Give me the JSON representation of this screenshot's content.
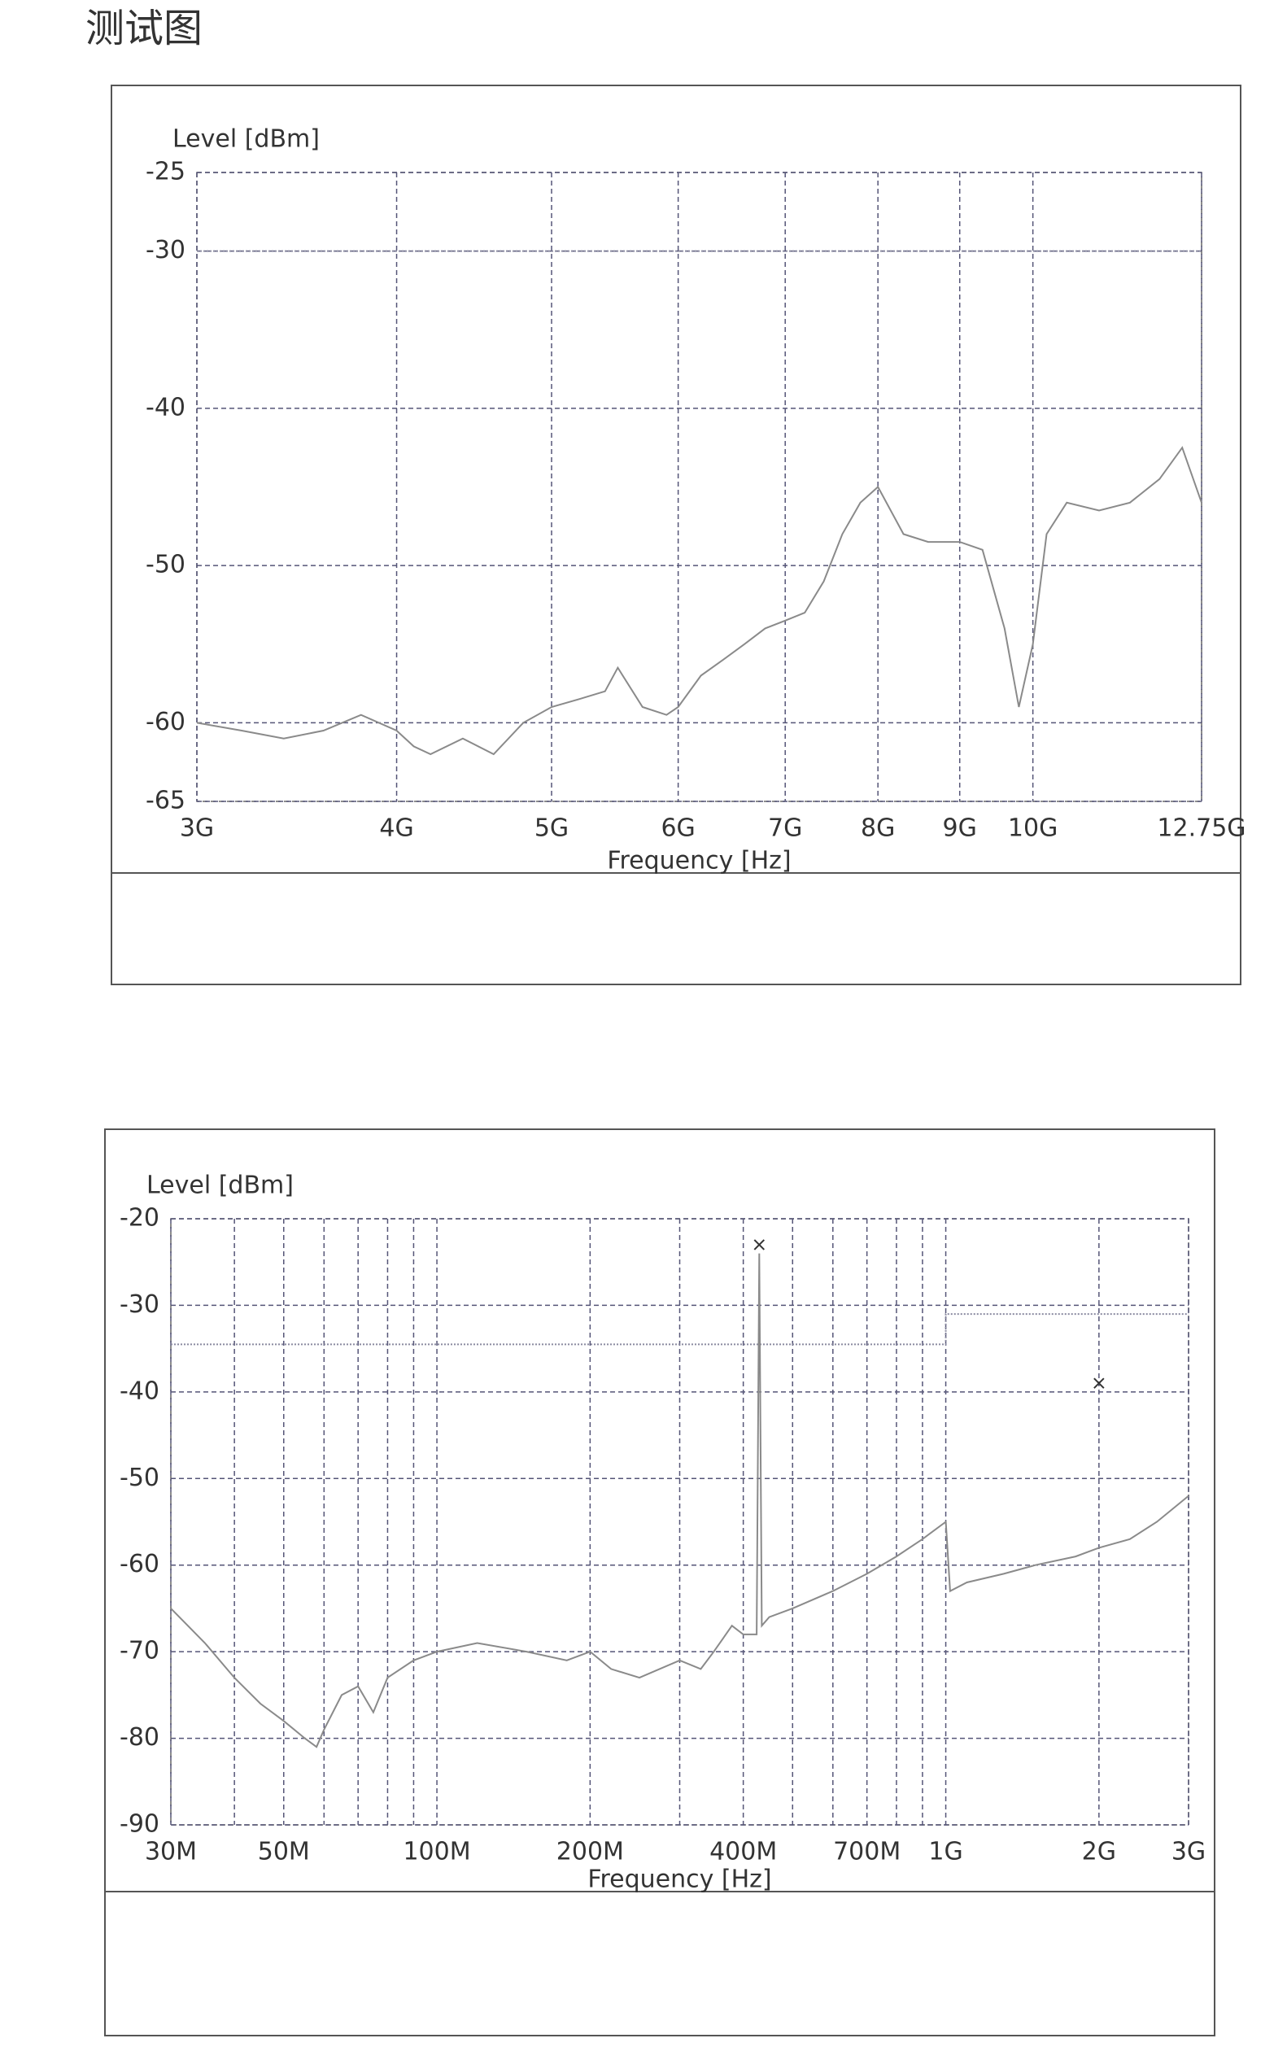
{
  "heading": "测试图",
  "chart_data": [
    {
      "type": "line",
      "ylabel": "Level [dBm]",
      "xlabel": "Frequency [Hz]",
      "xscale": "log",
      "grid": true,
      "xlim": [
        3000000000.0,
        12750000000.0
      ],
      "ylim": [
        -65,
        -25
      ],
      "xticks": [
        {
          "value": 3000000000.0,
          "label": "3G"
        },
        {
          "value": 4000000000.0,
          "label": "4G"
        },
        {
          "value": 5000000000.0,
          "label": "5G"
        },
        {
          "value": 6000000000.0,
          "label": "6G"
        },
        {
          "value": 7000000000.0,
          "label": "7G"
        },
        {
          "value": 8000000000.0,
          "label": "8G"
        },
        {
          "value": 9000000000.0,
          "label": "9G"
        },
        {
          "value": 10000000000.0,
          "label": "10G"
        },
        {
          "value": 12750000000.0,
          "label": "12.75G"
        }
      ],
      "yticks": [
        -25,
        -30,
        -40,
        -50,
        -60,
        -65
      ],
      "x": [
        3000000000.0,
        3200000000.0,
        3400000000.0,
        3600000000.0,
        3800000000.0,
        4000000000.0,
        4100000000.0,
        4200000000.0,
        4400000000.0,
        4600000000.0,
        4800000000.0,
        5000000000.0,
        5200000000.0,
        5400000000.0,
        5500000000.0,
        5700000000.0,
        5900000000.0,
        6000000000.0,
        6200000000.0,
        6400000000.0,
        6600000000.0,
        6800000000.0,
        7000000000.0,
        7200000000.0,
        7400000000.0,
        7600000000.0,
        7800000000.0,
        8000000000.0,
        8300000000.0,
        8600000000.0,
        9000000000.0,
        9300000000.0,
        9600000000.0,
        9800000000.0,
        10000000000.0,
        10200000000.0,
        10500000000.0,
        11000000000.0,
        11500000000.0,
        12000000000.0,
        12400000000.0,
        12750000000.0
      ],
      "series": [
        {
          "color": "#8a8a8a",
          "values": [
            -60,
            -60.5,
            -61,
            -60.5,
            -59.5,
            -60.5,
            -61.5,
            -62,
            -61,
            -62,
            -60,
            -59,
            -58.5,
            -58,
            -56.5,
            -59,
            -59.5,
            -59,
            -57,
            -56,
            -55,
            -54,
            -53.5,
            -53,
            -51,
            -48,
            -46,
            -45,
            -48,
            -48.5,
            -48.5,
            -49,
            -54,
            -59,
            -55,
            -48,
            -46,
            -46.5,
            -46,
            -44.5,
            -42.5,
            -46
          ]
        }
      ],
      "limit": {
        "color": "#8a8aa0",
        "x": [
          3000000000.0,
          12750000000.0
        ],
        "y": [
          -30,
          -30
        ]
      }
    },
    {
      "type": "line",
      "ylabel": "Level [dBm]",
      "xlabel": "Frequency [Hz]",
      "xscale": "log",
      "grid": true,
      "xlim": [
        30000000.0,
        3000000000.0
      ],
      "ylim": [
        -90,
        -20
      ],
      "xticks": [
        {
          "value": 30000000.0,
          "label": "30M"
        },
        {
          "value": 50000000.0,
          "label": "50M"
        },
        {
          "value": 100000000.0,
          "label": "100M"
        },
        {
          "value": 200000000.0,
          "label": "200M"
        },
        {
          "value": 400000000.0,
          "label": "400M"
        },
        {
          "value": 700000000.0,
          "label": "700M"
        },
        {
          "value": 1000000000.0,
          "label": "1G"
        },
        {
          "value": 2000000000.0,
          "label": "2G"
        },
        {
          "value": 3000000000.0,
          "label": "3G"
        }
      ],
      "xminorticks": [
        40000000.0,
        60000000.0,
        70000000.0,
        80000000.0,
        90000000.0,
        300000000.0,
        500000000.0,
        600000000.0,
        800000000.0,
        900000000.0
      ],
      "yticks": [
        -20,
        -30,
        -40,
        -50,
        -60,
        -70,
        -80,
        -90
      ],
      "x": [
        30000000.0,
        35000000.0,
        40000000.0,
        45000000.0,
        50000000.0,
        55000000.0,
        58000000.0,
        60000000.0,
        65000000.0,
        70000000.0,
        75000000.0,
        80000000.0,
        90000000.0,
        100000000.0,
        120000000.0,
        150000000.0,
        180000000.0,
        200000000.0,
        220000000.0,
        250000000.0,
        300000000.0,
        330000000.0,
        350000000.0,
        380000000.0,
        400000000.0,
        425000000.0,
        430000000.0,
        435000000.0,
        450000000.0,
        500000000.0,
        600000000.0,
        700000000.0,
        800000000.0,
        900000000.0,
        1000000000.0,
        1020000000.0,
        1100000000.0,
        1300000000.0,
        1500000000.0,
        1800000000.0,
        2000000000.0,
        2300000000.0,
        2600000000.0,
        3000000000.0
      ],
      "series": [
        {
          "color": "#8a8a8a",
          "values": [
            -65,
            -69,
            -73,
            -76,
            -78,
            -80,
            -81,
            -79,
            -75,
            -74,
            -77,
            -73,
            -71,
            -70,
            -69,
            -70,
            -71,
            -70,
            -72,
            -73,
            -71,
            -72,
            -70,
            -67,
            -68,
            -68,
            -24,
            -67,
            -66,
            -65,
            -63,
            -61,
            -59,
            -57,
            -55,
            -63,
            -62,
            -61,
            -60,
            -59,
            -58,
            -57,
            -55,
            -52
          ]
        }
      ],
      "limit": {
        "color": "#8a8aa0",
        "x": [
          30000000.0,
          1000000000.0,
          1000000000.0,
          3000000000.0
        ],
        "y": [
          -34.5,
          -34.5,
          -31,
          -31
        ]
      },
      "markers": {
        "x": [
          430000000.0,
          2000000000.0
        ],
        "y": [
          -23,
          -39
        ]
      }
    }
  ]
}
